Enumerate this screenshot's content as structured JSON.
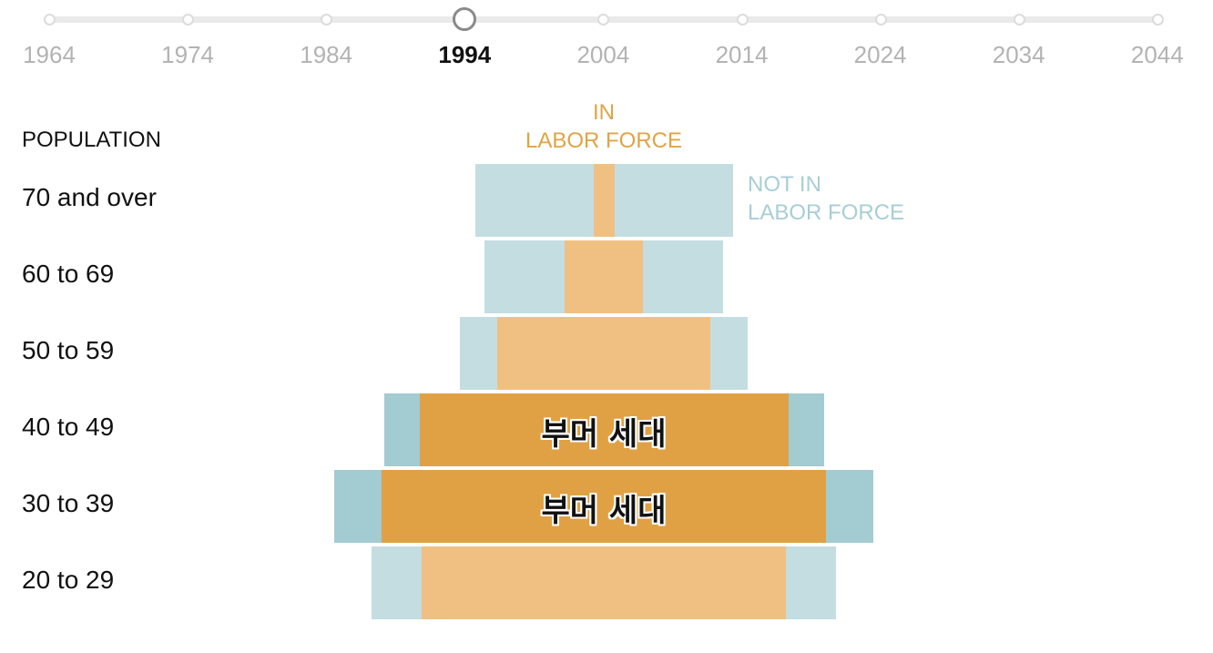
{
  "timeline": {
    "years": [
      "1964",
      "1974",
      "1984",
      "1994",
      "2004",
      "2014",
      "2024",
      "2034",
      "2044"
    ],
    "selected": "1994"
  },
  "legend": {
    "in_labor_force": [
      "IN",
      "LABOR FORCE"
    ],
    "not_in_labor_force": [
      "NOT IN",
      "LABOR FORCE"
    ]
  },
  "colors": {
    "in_labor_force": "#f0c083",
    "in_labor_force_boomer": "#e0a145",
    "not_in_labor_force": "#c4dde1",
    "not_in_labor_force_boomer": "#a3cbd2",
    "timeline_track": "#eaeaea",
    "timeline_handle": "#8a8a8a"
  },
  "chart_data": {
    "type": "bar",
    "title": "",
    "axis_title": "POPULATION",
    "categories": [
      "70 and over",
      "60 to 69",
      "50 to 59",
      "40 to 49",
      "30 to 39",
      "20 to 29"
    ],
    "series": [
      {
        "name": "IN LABOR FORCE",
        "values": [
          23,
          86,
          234,
          405,
          488,
          400
        ]
      },
      {
        "name": "NOT IN LABOR FORCE",
        "values": [
          260,
          176,
          82,
          78,
          104,
          110
        ]
      }
    ],
    "boomer_rows": [
      false,
      false,
      false,
      true,
      true,
      false
    ],
    "boomer_label": "부머 세대"
  }
}
